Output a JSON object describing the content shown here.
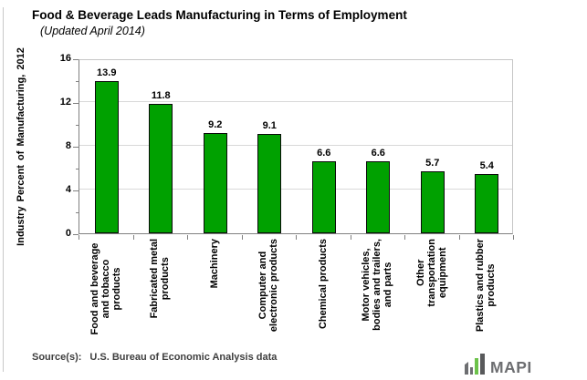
{
  "page": {
    "title": "Food & Beverage Leads Manufacturing in Terms of Employment",
    "subtitle": "(Updated April 2014)"
  },
  "chart_data": {
    "type": "bar",
    "title": "Food & Beverage Leads Manufacturing in Terms of Employment",
    "subtitle": "(Updated April 2014)",
    "xlabel": "",
    "ylabel": "Industry Percent of Manufacturing, 2012",
    "ylim": [
      0,
      16
    ],
    "yticks": [
      0,
      4,
      8,
      12,
      16
    ],
    "yticks_minor": [
      2,
      6,
      10,
      14
    ],
    "grid": true,
    "legend_position": "none",
    "categories": [
      "Food and beverage\nand tobacco products",
      "Fabricated metal\nproducts",
      "Machinery",
      "Computer and\nelectronic products",
      "Chemical products",
      "Motor vehicles,\nbodies and trailers,\nand parts",
      "Other\ntransportation\nequipment",
      "Plastics and rubber\nproducts"
    ],
    "values": [
      13.9,
      11.8,
      9.2,
      9.1,
      6.6,
      6.6,
      5.7,
      5.4
    ],
    "data_labels": [
      "13.9",
      "11.8",
      "9.2",
      "9.1",
      "6.6",
      "6.6",
      "5.7",
      "5.4"
    ]
  },
  "colors": {
    "bar": "#00A100",
    "bar_border": "#0A0A0A",
    "grid": "#D9D9D9",
    "axis": "#808080",
    "plot_border": "#C6C6C6",
    "logo_gray": "#6D6E71",
    "logo_green": "#6CC24A"
  },
  "footer": {
    "source_label": "Source(s):",
    "source_text": "U.S. Bureau of Economic Analysis data",
    "logo_text": "MAPI"
  }
}
